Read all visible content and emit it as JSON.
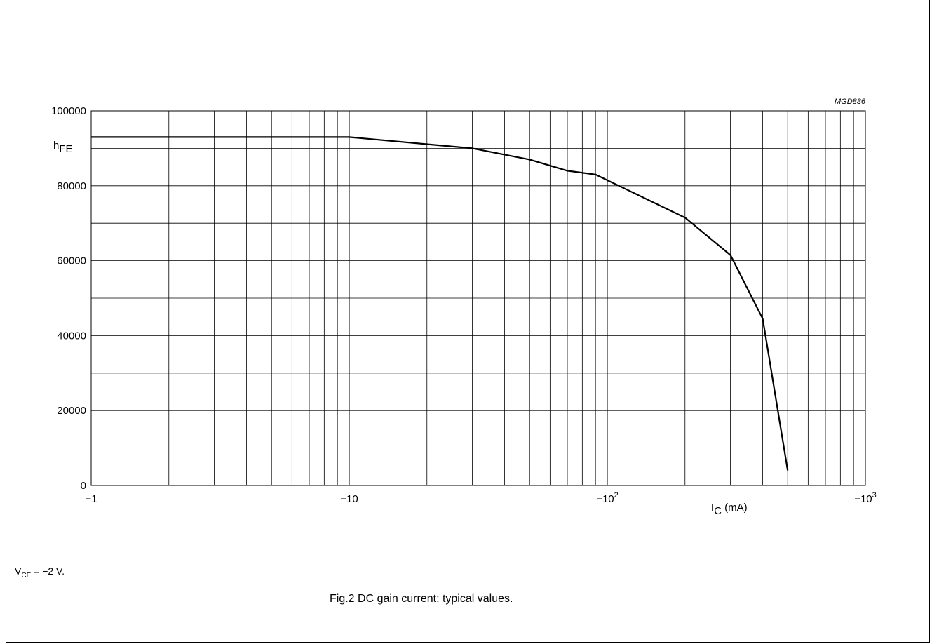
{
  "chart_data": {
    "type": "line",
    "code": "MGD836",
    "ylabel_main": "h",
    "ylabel_sub": "FE",
    "xlabel_main": "I",
    "xlabel_sub": "C",
    "xlabel_unit": " (mA)",
    "x_scale": "log",
    "xlim": [
      -1,
      -1000
    ],
    "ylim": [
      0,
      100000
    ],
    "grid": true,
    "x_ticks": [
      {
        "value": -1,
        "label": "−1",
        "sup": ""
      },
      {
        "value": -10,
        "label": "−10",
        "sup": ""
      },
      {
        "value": -100,
        "label": "−10",
        "sup": "2"
      },
      {
        "value": -1000,
        "label": "−10",
        "sup": "3"
      }
    ],
    "y_ticks": [
      {
        "value": 0,
        "label": "0"
      },
      {
        "value": 20000,
        "label": "20000"
      },
      {
        "value": 40000,
        "label": "40000"
      },
      {
        "value": 60000,
        "label": "60000"
      },
      {
        "value": 80000,
        "label": "80000"
      },
      {
        "value": 100000,
        "label": "100000"
      }
    ],
    "series": [
      {
        "x": [
          -1,
          -10,
          -30,
          -50,
          -70,
          -90,
          -200,
          -300,
          -400,
          -500
        ],
        "y": [
          93000,
          93000,
          90000,
          87000,
          84000,
          83000,
          71500,
          61500,
          44500,
          4000
        ]
      }
    ]
  },
  "note": {
    "main": "V",
    "sub": "CE",
    "rest": " = −2 V."
  },
  "caption": "Fig.2  DC gain current; typical values."
}
